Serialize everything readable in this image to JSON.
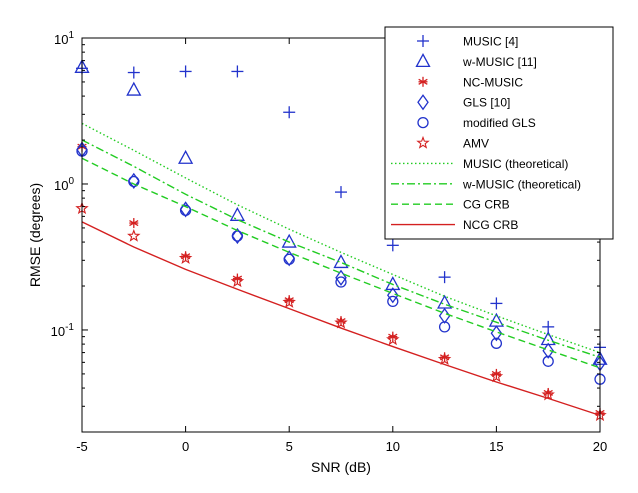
{
  "chart_data": {
    "type": "line",
    "title": "",
    "xlabel": "SNR (dB)",
    "ylabel": "RMSE (degrees)",
    "xscale": "linear",
    "yscale": "log",
    "xlim": [
      -5,
      20
    ],
    "ylim": [
      0.02,
      10
    ],
    "x_ticks": [
      -5,
      0,
      5,
      10,
      15,
      20
    ],
    "x_tick_labels": [
      "-5",
      "0",
      "5",
      "10",
      "15",
      "20"
    ],
    "y_tick_labels": [
      {
        "value": 10,
        "base": "10",
        "exp": "1"
      },
      {
        "value": 1,
        "base": "10",
        "exp": "0"
      },
      {
        "value": 0.1,
        "base": "10",
        "exp": "-1"
      }
    ],
    "grid": false,
    "legend_position": "top-right",
    "series": [
      {
        "name": "MUSIC [4]",
        "kind": "marker",
        "marker": "plus",
        "color": "#2233cc",
        "x": [
          -5,
          -2.5,
          0,
          2.5,
          5,
          7.5,
          10,
          12.5,
          15,
          17.5,
          20
        ],
        "y": [
          6.2,
          5.8,
          5.9,
          5.9,
          3.1,
          0.88,
          0.38,
          0.23,
          0.152,
          0.105,
          0.076
        ]
      },
      {
        "name": "w-MUSIC [11]",
        "kind": "marker",
        "marker": "triangle",
        "color": "#2233cc",
        "x": [
          -5,
          -2.5,
          0,
          2.5,
          5,
          7.5,
          10,
          12.5,
          15,
          17.5,
          20
        ],
        "y": [
          6.3,
          4.4,
          1.5,
          0.61,
          0.4,
          0.29,
          0.205,
          0.153,
          0.115,
          0.086,
          0.063
        ]
      },
      {
        "name": "NC-MUSIC",
        "kind": "marker",
        "marker": "asterisk",
        "color": "#d42020",
        "x": [
          -5,
          -2.5,
          0,
          2.5,
          5,
          7.5,
          10,
          12.5,
          15,
          17.5,
          20
        ],
        "y": [
          1.8,
          0.54,
          0.32,
          0.225,
          0.16,
          0.115,
          0.09,
          0.065,
          0.05,
          0.037,
          0.027
        ]
      },
      {
        "name": "GLS [10]",
        "kind": "marker",
        "marker": "diamond",
        "color": "#2233cc",
        "x": [
          -5,
          -2.5,
          0,
          2.5,
          5,
          7.5,
          10,
          12.5,
          15,
          17.5,
          20
        ],
        "y": [
          1.72,
          1.05,
          0.67,
          0.44,
          0.31,
          0.228,
          0.173,
          0.125,
          0.095,
          0.072,
          0.059
        ]
      },
      {
        "name": "modified GLS",
        "kind": "marker",
        "marker": "circle",
        "color": "#2233cc",
        "x": [
          -5,
          -2.5,
          0,
          2.5,
          5,
          7.5,
          10,
          12.5,
          15,
          17.5,
          20
        ],
        "y": [
          1.68,
          1.04,
          0.66,
          0.44,
          0.305,
          0.213,
          0.157,
          0.105,
          0.081,
          0.061,
          0.046
        ]
      },
      {
        "name": "AMV",
        "kind": "marker",
        "marker": "star",
        "color": "#d42020",
        "x": [
          -5,
          -2.5,
          0,
          2.5,
          5,
          7.5,
          10,
          12.5,
          15,
          17.5,
          20
        ],
        "y": [
          0.68,
          0.44,
          0.31,
          0.215,
          0.155,
          0.112,
          0.086,
          0.063,
          0.048,
          0.036,
          0.026
        ]
      },
      {
        "name": "MUSIC (theoretical)",
        "kind": "line",
        "dash": "dotted",
        "color": "#22cc22",
        "x": [
          -5,
          -2.5,
          0,
          2.5,
          5,
          7.5,
          10,
          12.5,
          15,
          17.5,
          20
        ],
        "y": [
          2.6,
          1.7,
          1.1,
          0.72,
          0.49,
          0.34,
          0.24,
          0.17,
          0.125,
          0.093,
          0.07
        ]
      },
      {
        "name": "w-MUSIC (theoretical)",
        "kind": "line",
        "dash": "dashdot",
        "color": "#22cc22",
        "x": [
          -5,
          -2.5,
          0,
          2.5,
          5,
          7.5,
          10,
          12.5,
          15,
          17.5,
          20
        ],
        "y": [
          2.0,
          1.32,
          0.85,
          0.57,
          0.4,
          0.29,
          0.205,
          0.15,
          0.113,
          0.085,
          0.065
        ]
      },
      {
        "name": "CG CRB",
        "kind": "line",
        "dash": "dashed",
        "color": "#22cc22",
        "x": [
          -5,
          -2.5,
          0,
          2.5,
          5,
          7.5,
          10,
          12.5,
          15,
          17.5,
          20
        ],
        "y": [
          1.5,
          1.0,
          0.7,
          0.48,
          0.34,
          0.245,
          0.178,
          0.13,
          0.097,
          0.073,
          0.055
        ]
      },
      {
        "name": "NCG CRB",
        "kind": "line",
        "dash": "solid",
        "color": "#d42020",
        "x": [
          -5,
          -2.5,
          0,
          2.5,
          5,
          7.5,
          10,
          12.5,
          15,
          17.5,
          20
        ],
        "y": [
          0.55,
          0.37,
          0.26,
          0.19,
          0.14,
          0.103,
          0.077,
          0.058,
          0.044,
          0.034,
          0.026
        ]
      }
    ]
  }
}
